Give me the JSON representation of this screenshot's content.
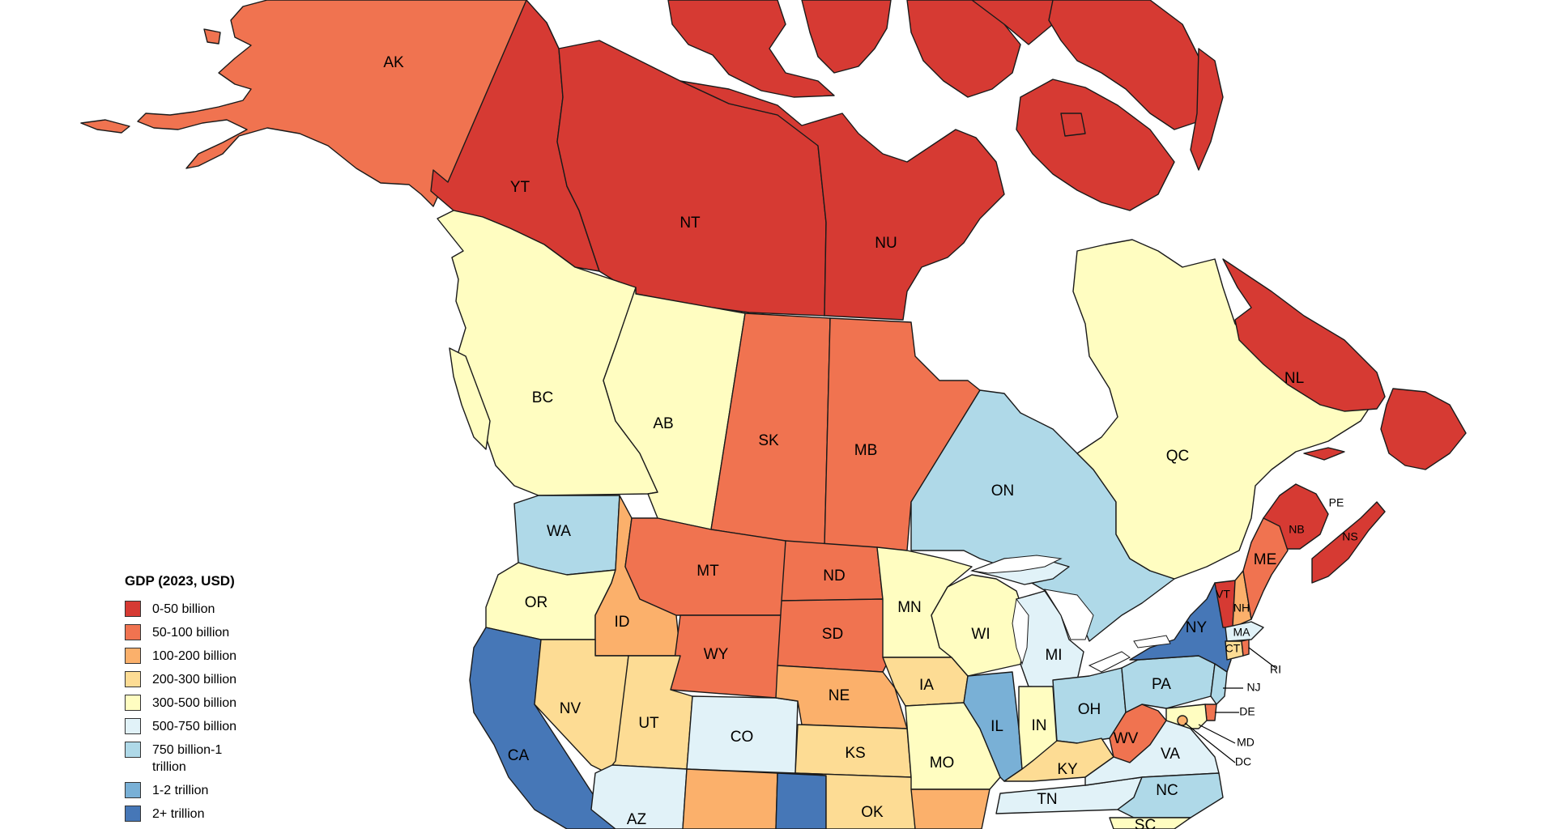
{
  "colors": {
    "c0": "#d63a33",
    "c1": "#f07350",
    "c2": "#fbb06b",
    "c3": "#fddc94",
    "c4": "#fffdc1",
    "c5": "#e1f2f8",
    "c6": "#afd9e8",
    "c7": "#79b0d6",
    "c8": "#4677b7"
  },
  "legend": {
    "title": "GDP (2023, USD)",
    "items": [
      {
        "key": "c0",
        "label": "0-50 billion"
      },
      {
        "key": "c1",
        "label": "50-100 billion"
      },
      {
        "key": "c2",
        "label": "100-200 billion"
      },
      {
        "key": "c3",
        "label": "200-300 billion"
      },
      {
        "key": "c4",
        "label": "300-500 billion"
      },
      {
        "key": "c5",
        "label": "500-750 billion"
      },
      {
        "key": "c6",
        "label": "750 billion-1 trillion"
      },
      {
        "key": "c7",
        "label": "1-2 trillion"
      },
      {
        "key": "c8",
        "label": "2+ trillion"
      }
    ]
  },
  "regions": {
    "AK": {
      "label": "AK",
      "cls": "c1"
    },
    "YT": {
      "label": "YT",
      "cls": "c0"
    },
    "NT": {
      "label": "NT",
      "cls": "c0"
    },
    "NU": {
      "label": "NU",
      "cls": "c0"
    },
    "BC": {
      "label": "BC",
      "cls": "c4"
    },
    "AB": {
      "label": "AB",
      "cls": "c4"
    },
    "SK": {
      "label": "SK",
      "cls": "c1"
    },
    "MB": {
      "label": "MB",
      "cls": "c1"
    },
    "ON": {
      "label": "ON",
      "cls": "c6"
    },
    "QC": {
      "label": "QC",
      "cls": "c4"
    },
    "NL": {
      "label": "NL",
      "cls": "c0"
    },
    "PE": {
      "label": "PE",
      "cls": "c0"
    },
    "NB": {
      "label": "NB",
      "cls": "c0"
    },
    "NS": {
      "label": "NS",
      "cls": "c0"
    },
    "WA": {
      "label": "WA",
      "cls": "c6"
    },
    "OR": {
      "label": "OR",
      "cls": "c4"
    },
    "CA": {
      "label": "CA",
      "cls": "c8"
    },
    "ID": {
      "label": "ID",
      "cls": "c2"
    },
    "NV": {
      "label": "NV",
      "cls": "c3"
    },
    "MT": {
      "label": "MT",
      "cls": "c1"
    },
    "WY": {
      "label": "WY",
      "cls": "c1"
    },
    "UT": {
      "label": "UT",
      "cls": "c3"
    },
    "AZ": {
      "label": "AZ",
      "cls": "c5"
    },
    "CO": {
      "label": "CO",
      "cls": "c5"
    },
    "NM": {
      "label": "",
      "cls": "c2"
    },
    "ND": {
      "label": "ND",
      "cls": "c1"
    },
    "SD": {
      "label": "SD",
      "cls": "c1"
    },
    "NE": {
      "label": "NE",
      "cls": "c2"
    },
    "KS": {
      "label": "KS",
      "cls": "c3"
    },
    "OK": {
      "label": "OK",
      "cls": "c3"
    },
    "TX": {
      "label": "",
      "cls": "c8"
    },
    "MN": {
      "label": "MN",
      "cls": "c4"
    },
    "IA": {
      "label": "IA",
      "cls": "c3"
    },
    "MO": {
      "label": "MO",
      "cls": "c4"
    },
    "AR": {
      "label": "",
      "cls": "c2"
    },
    "WI": {
      "label": "WI",
      "cls": "c4"
    },
    "IL": {
      "label": "IL",
      "cls": "c7"
    },
    "MI": {
      "label": "MI",
      "cls": "c5"
    },
    "IN": {
      "label": "IN",
      "cls": "c4"
    },
    "OH": {
      "label": "OH",
      "cls": "c6"
    },
    "KY": {
      "label": "KY",
      "cls": "c3"
    },
    "TN": {
      "label": "TN",
      "cls": "c5"
    },
    "WV": {
      "label": "WV",
      "cls": "c1"
    },
    "VA": {
      "label": "VA",
      "cls": "c5"
    },
    "NC": {
      "label": "NC",
      "cls": "c6"
    },
    "SC": {
      "label": "SC",
      "cls": "c4"
    },
    "PA": {
      "label": "PA",
      "cls": "c6"
    },
    "NY": {
      "label": "NY",
      "cls": "c8"
    },
    "VT": {
      "label": "VT",
      "cls": "c0"
    },
    "NH": {
      "label": "NH",
      "cls": "c2"
    },
    "ME": {
      "label": "ME",
      "cls": "c1"
    },
    "MA": {
      "label": "MA",
      "cls": "c5"
    },
    "CT": {
      "label": "CT",
      "cls": "c3"
    },
    "RI": {
      "label": "RI",
      "cls": "c1"
    },
    "NJ": {
      "label": "NJ",
      "cls": "c6"
    },
    "DE": {
      "label": "DE",
      "cls": "c1"
    },
    "MD": {
      "label": "MD",
      "cls": "c4"
    },
    "DC": {
      "label": "DC",
      "cls": "c2"
    }
  }
}
